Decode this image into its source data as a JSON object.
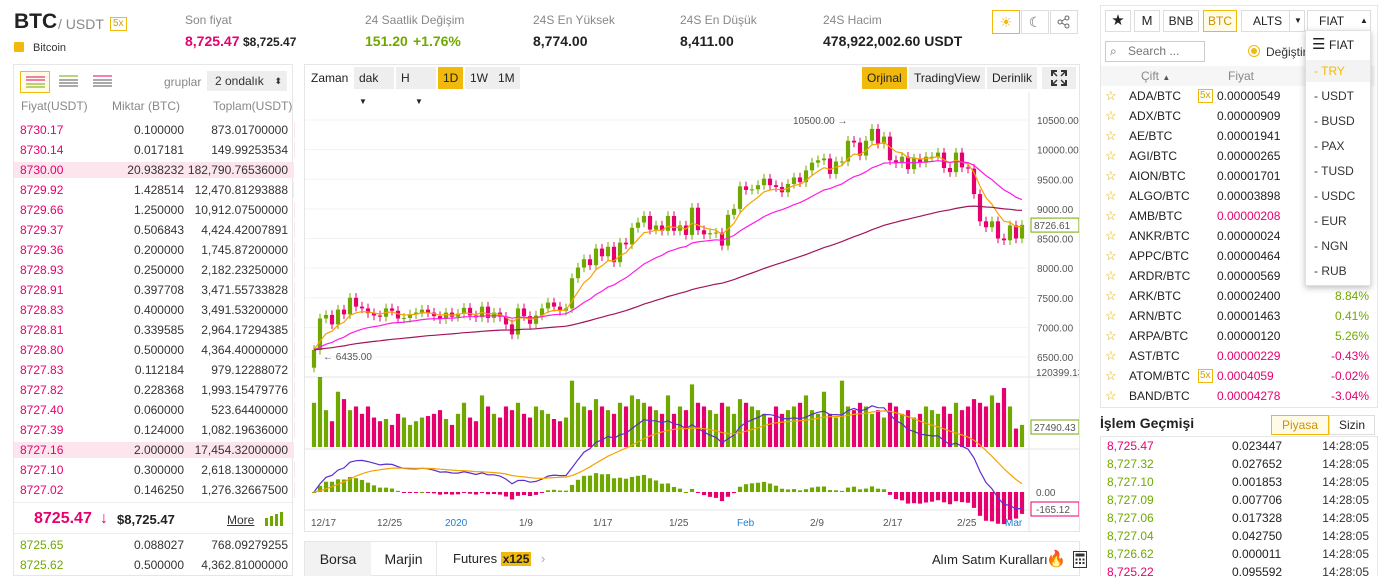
{
  "header": {
    "symbol": "BTC",
    "quote": "/ USDT",
    "leverage": "5x",
    "coin_name": "Bitcoin",
    "stats": [
      {
        "label": "Son fiyat",
        "value": "8,725.47",
        "value2": "$8,725.47"
      },
      {
        "label": "24 Saatlik Değişim",
        "value": "151.20",
        "value2": "+1.76%"
      },
      {
        "label": "24S En Yüksek",
        "value": "8,774.00"
      },
      {
        "label": "24S En Düşük",
        "value": "8,411.00"
      },
      {
        "label": "24S Hacim",
        "value": "478,922,002.60 USDT"
      }
    ]
  },
  "orderbook": {
    "group_label": "gruplar",
    "group_value": "2 ondalık",
    "col_price": "Fiyat(USDT)",
    "col_amount": "Miktar (BTC)",
    "col_total": "Toplam(USDT)",
    "asks": [
      {
        "p": "8730.17",
        "a": "0.100000",
        "t": "873.01700000",
        "d": 5
      },
      {
        "p": "8730.14",
        "a": "0.017181",
        "t": "149.99253534",
        "d": 4
      },
      {
        "p": "8730.00",
        "a": "20.938232",
        "t": "182,790.76536000",
        "d": 100
      },
      {
        "p": "8729.92",
        "a": "1.428514",
        "t": "12,470.81293888",
        "d": 10
      },
      {
        "p": "8729.66",
        "a": "1.250000",
        "t": "10,912.07500000",
        "d": 8
      },
      {
        "p": "8729.37",
        "a": "0.506843",
        "t": "4,424.42007891",
        "d": 5
      },
      {
        "p": "8729.36",
        "a": "0.200000",
        "t": "1,745.87200000",
        "d": 3
      },
      {
        "p": "8728.93",
        "a": "0.250000",
        "t": "2,182.23250000",
        "d": 4
      },
      {
        "p": "8728.91",
        "a": "0.397708",
        "t": "3,471.55733828",
        "d": 4
      },
      {
        "p": "8728.83",
        "a": "0.400000",
        "t": "3,491.53200000",
        "d": 4
      },
      {
        "p": "8728.81",
        "a": "0.339585",
        "t": "2,964.17294385",
        "d": 3
      },
      {
        "p": "8728.80",
        "a": "0.500000",
        "t": "4,364.40000000",
        "d": 5
      },
      {
        "p": "8727.83",
        "a": "0.112184",
        "t": "979.12288072",
        "d": 3
      },
      {
        "p": "8727.82",
        "a": "0.228368",
        "t": "1,993.15479776",
        "d": 3
      },
      {
        "p": "8727.40",
        "a": "0.060000",
        "t": "523.64400000",
        "d": 2
      },
      {
        "p": "8727.39",
        "a": "0.124000",
        "t": "1,082.19636000",
        "d": 3
      },
      {
        "p": "8727.16",
        "a": "2.000000",
        "t": "17,454.32000000",
        "d": 100
      },
      {
        "p": "8727.10",
        "a": "0.300000",
        "t": "2,618.13000000",
        "d": 3
      },
      {
        "p": "8727.02",
        "a": "0.146250",
        "t": "1,276.32667500",
        "d": 3
      }
    ],
    "last_price": "8725.47",
    "last_arrow": "↓",
    "last_usd": "$8,725.47",
    "more": "More",
    "bids": [
      {
        "p": "8725.65",
        "a": "0.088027",
        "t": "768.09279255"
      },
      {
        "p": "8725.62",
        "a": "0.500000",
        "t": "4,362.81000000"
      }
    ]
  },
  "chart_toolbar": {
    "zaman": "Zaman",
    "interval": "dak",
    "h": "H",
    "d1": "1D",
    "w1": "1W",
    "m1": "1M",
    "orjinal": "Orjinal",
    "tv": "TradingView",
    "depth": "Derinlik"
  },
  "chart_data": {
    "type": "candlestick",
    "price_ticks": [
      "10500.00",
      "10000.00",
      "9500.00",
      "9000.00",
      "8500.00",
      "8000.00",
      "7500.00",
      "7000.00",
      "6500.00"
    ],
    "current_price": "8726.61",
    "high_marker": "10500.00",
    "low_marker": "6435.00",
    "volume_max": "120399.13",
    "volume_current": "27490.43",
    "macd_zero": "0.00",
    "macd_current": "-165.12",
    "x_labels": [
      "12/17",
      "12/25",
      "2020",
      "1/9",
      "1/17",
      "1/25",
      "Feb",
      "2/9",
      "2/17",
      "2/25",
      "Mar"
    ],
    "closes": [
      6620,
      7150,
      7210,
      7050,
      7300,
      7220,
      7500,
      7350,
      7320,
      7240,
      7200,
      7180,
      7320,
      7280,
      7150,
      7160,
      7220,
      7250,
      7300,
      7250,
      7190,
      7140,
      7250,
      7180,
      7230,
      7330,
      7200,
      7170,
      7350,
      7160,
      7250,
      7180,
      7050,
      6880,
      7320,
      7190,
      7060,
      7200,
      7320,
      7420,
      7350,
      7280,
      7320,
      7830,
      8010,
      8150,
      8050,
      8330,
      8200,
      8360,
      8100,
      8430,
      8400,
      8680,
      8770,
      8880,
      8650,
      8720,
      8630,
      8880,
      8630,
      8720,
      8560,
      9020,
      8640,
      8570,
      8590,
      8600,
      8380,
      8900,
      9000,
      9380,
      9320,
      9330,
      9400,
      9510,
      9400,
      9370,
      9280,
      9420,
      9530,
      9450,
      9650,
      9780,
      9820,
      9850,
      9590,
      9800,
      9800,
      10150,
      10120,
      9900,
      10150,
      10350,
      10100,
      10220,
      9820,
      9770,
      9880,
      9670,
      9850,
      9780,
      9880,
      9880,
      9950,
      9690,
      9620,
      9950,
      9700,
      9680,
      9250,
      8790,
      8690,
      8790,
      8500,
      8470,
      8720,
      8500,
      8730
    ],
    "volumes": [
      60,
      95,
      50,
      35,
      75,
      65,
      50,
      55,
      45,
      55,
      40,
      35,
      38,
      30,
      45,
      40,
      30,
      35,
      40,
      42,
      45,
      50,
      38,
      30,
      45,
      60,
      40,
      35,
      70,
      55,
      45,
      40,
      55,
      50,
      60,
      45,
      40,
      55,
      50,
      45,
      38,
      35,
      40,
      90,
      60,
      55,
      50,
      65,
      55,
      50,
      45,
      60,
      55,
      70,
      65,
      60,
      55,
      50,
      45,
      70,
      45,
      55,
      50,
      85,
      60,
      55,
      50,
      45,
      60,
      55,
      45,
      65,
      60,
      55,
      50,
      45,
      40,
      55,
      45,
      50,
      55,
      60,
      70,
      50,
      45,
      75,
      45,
      40,
      90,
      55,
      50,
      60,
      55,
      45,
      50,
      40,
      60,
      55,
      45,
      50,
      40,
      45,
      55,
      50,
      45,
      55,
      45,
      60,
      50,
      55,
      65,
      60,
      55,
      70,
      60,
      80,
      55,
      25,
      30
    ]
  },
  "bottom_tabs": {
    "borsa": "Borsa",
    "marjin": "Marjin",
    "futures": "Futures",
    "futures_badge": "x125",
    "rules": "Alım Satım Kuralları"
  },
  "market": {
    "tabs": [
      "BNB",
      "BTC",
      "ALTS",
      "FIAT"
    ],
    "m_tab": "M",
    "search_placeholder": "Search ...",
    "change_label": "Değiştir",
    "col_pair": "Çift",
    "col_price": "Fiyat",
    "rows": [
      {
        "pair": "ADA/BTC",
        "lev": "5x",
        "price": "0.00000549",
        "chg": "",
        "up": true
      },
      {
        "pair": "ADX/BTC",
        "price": "0.00000909",
        "chg": "",
        "up": true
      },
      {
        "pair": "AE/BTC",
        "price": "0.00001941",
        "chg": "",
        "up": true
      },
      {
        "pair": "AGI/BTC",
        "price": "0.00000265",
        "chg": "",
        "up": true
      },
      {
        "pair": "AION/BTC",
        "price": "0.00001701",
        "chg": "",
        "up": true
      },
      {
        "pair": "ALGO/BTC",
        "price": "0.00003898",
        "chg": "",
        "up": true
      },
      {
        "pair": "AMB/BTC",
        "price": "0.00000208",
        "chg": "",
        "up": false
      },
      {
        "pair": "ANKR/BTC",
        "price": "0.00000024",
        "chg": "",
        "up": true
      },
      {
        "pair": "APPC/BTC",
        "price": "0.00000464",
        "chg": "",
        "up": true
      },
      {
        "pair": "ARDR/BTC",
        "price": "0.00000569",
        "chg": "",
        "up": true
      },
      {
        "pair": "ARK/BTC",
        "price": "0.00002400",
        "chg": "8.84%",
        "up": true
      },
      {
        "pair": "ARN/BTC",
        "price": "0.00001463",
        "chg": "0.41%",
        "up": true
      },
      {
        "pair": "ARPA/BTC",
        "price": "0.00000120",
        "chg": "5.26%",
        "up": true
      },
      {
        "pair": "AST/BTC",
        "price": "0.00000229",
        "chg": "-0.43%",
        "up": false
      },
      {
        "pair": "ATOM/BTC",
        "lev": "5x",
        "price": "0.0004059",
        "chg": "-0.02%",
        "up": false
      },
      {
        "pair": "BAND/BTC",
        "price": "0.00004278",
        "chg": "-3.04%",
        "up": false
      }
    ]
  },
  "fiat_dropdown": {
    "header": "FIAT",
    "items": [
      "TRY",
      "USDT",
      "BUSD",
      "PAX",
      "TUSD",
      "USDC",
      "EUR",
      "NGN",
      "RUB"
    ]
  },
  "trade_history": {
    "title": "İşlem Geçmişi",
    "tab_market": "Piyasa",
    "tab_mine": "Sizin",
    "rows": [
      {
        "p": "8,725.47",
        "a": "0.023447",
        "t": "14:28:05",
        "up": false
      },
      {
        "p": "8,727.32",
        "a": "0.027652",
        "t": "14:28:05",
        "up": true
      },
      {
        "p": "8,727.10",
        "a": "0.001853",
        "t": "14:28:05",
        "up": true
      },
      {
        "p": "8,727.09",
        "a": "0.007706",
        "t": "14:28:05",
        "up": true
      },
      {
        "p": "8,727.06",
        "a": "0.017328",
        "t": "14:28:05",
        "up": true
      },
      {
        "p": "8,727.04",
        "a": "0.042750",
        "t": "14:28:05",
        "up": true
      },
      {
        "p": "8,726.62",
        "a": "0.000011",
        "t": "14:28:05",
        "up": true
      },
      {
        "p": "8,725.22",
        "a": "0.095592",
        "t": "14:28:05",
        "up": false
      }
    ]
  }
}
